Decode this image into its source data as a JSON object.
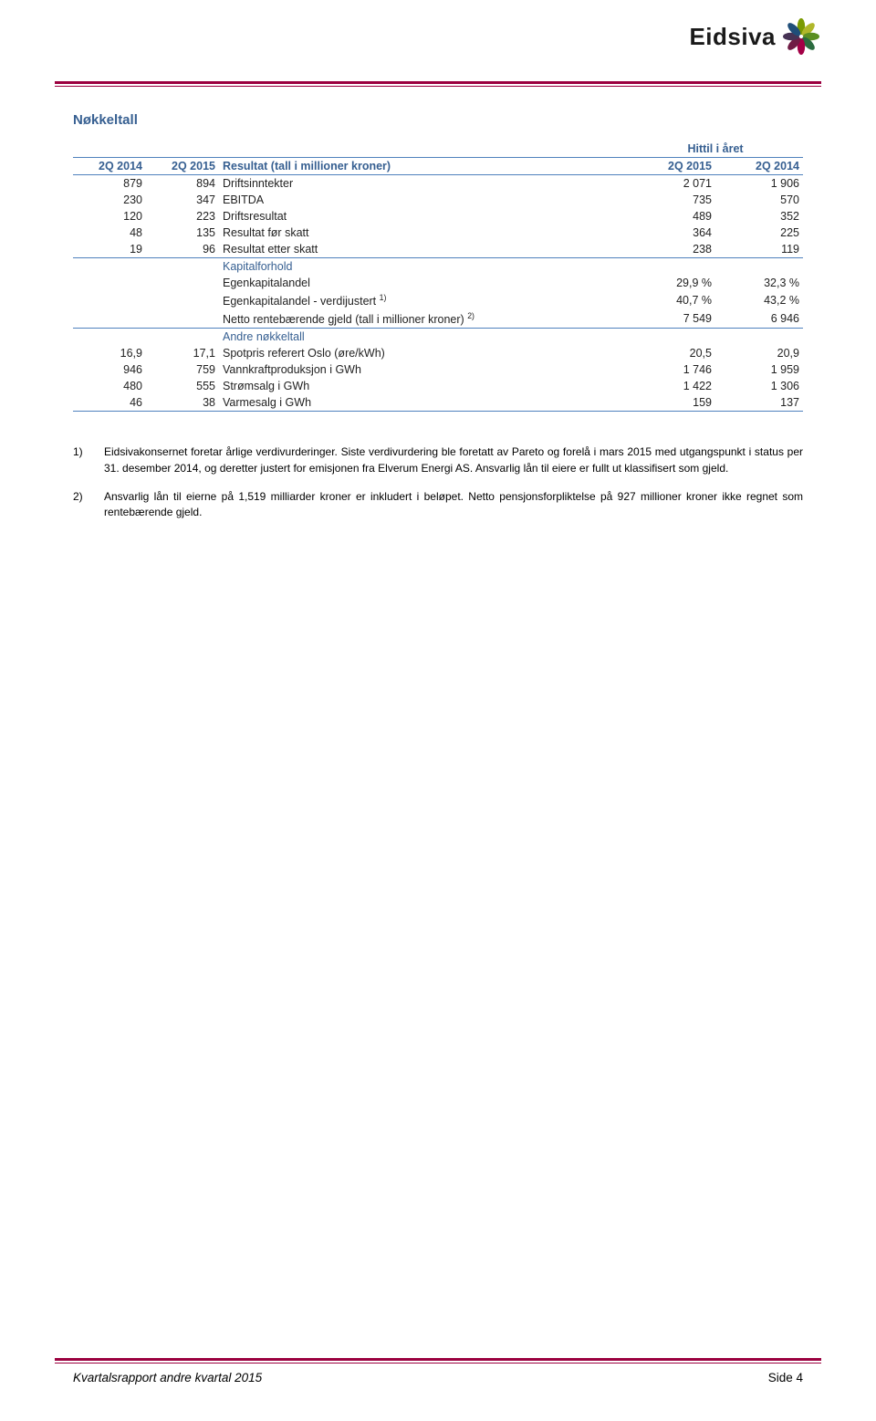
{
  "logo": {
    "text": "Eidsiva"
  },
  "title": "Nøkkeltall",
  "colhead": {
    "ytd": "Hittil i året",
    "q1a": "2Q 2014",
    "q1b": "2Q 2015",
    "metric": "Resultat (tall i millioner kroner)",
    "q2a": "2Q 2015",
    "q2b": "2Q 2014"
  },
  "rows_main": [
    {
      "a": "879",
      "b": "894",
      "lbl": "Driftsinntekter",
      "c": "2 071",
      "d": "1 906"
    },
    {
      "a": "230",
      "b": "347",
      "lbl": "EBITDA",
      "c": "735",
      "d": "570"
    },
    {
      "a": "120",
      "b": "223",
      "lbl": "Driftsresultat",
      "c": "489",
      "d": "352"
    },
    {
      "a": "48",
      "b": "135",
      "lbl": "Resultat før skatt",
      "c": "364",
      "d": "225"
    },
    {
      "a": "19",
      "b": "96",
      "lbl": "Resultat etter skatt",
      "c": "238",
      "d": "119"
    }
  ],
  "sub1_title": "Kapitalforhold",
  "rows_sub1": [
    {
      "a": "",
      "b": "",
      "lbl": "Egenkapitalandel",
      "c": "29,9 %",
      "d": "32,3 %"
    },
    {
      "a": "",
      "b": "",
      "lbl": "Egenkapitalandel - verdijustert",
      "sup": "1)",
      "c": "40,7 %",
      "d": "43,2 %"
    },
    {
      "a": "",
      "b": "",
      "lbl": "Netto rentebærende gjeld (tall i millioner kroner)",
      "sup": "2)",
      "c": "7 549",
      "d": "6 946"
    }
  ],
  "sub2_title": "Andre nøkkeltall",
  "rows_sub2": [
    {
      "a": "16,9",
      "b": "17,1",
      "lbl": "Spotpris referert Oslo (øre/kWh)",
      "c": "20,5",
      "d": "20,9"
    },
    {
      "a": "946",
      "b": "759",
      "lbl": "Vannkraftproduksjon i GWh",
      "c": "1 746",
      "d": "1 959"
    },
    {
      "a": "480",
      "b": "555",
      "lbl": "Strømsalg i GWh",
      "c": "1 422",
      "d": "1 306"
    },
    {
      "a": "46",
      "b": "38",
      "lbl": "Varmesalg i GWh",
      "c": "159",
      "d": "137"
    }
  ],
  "footnotes": [
    {
      "n": "1)",
      "t": "Eidsivakonsernet foretar årlige verdivurderinger. Siste verdivurdering ble foretatt av Pareto og forelå i mars 2015 med utgangspunkt i status per 31. desember 2014, og deretter justert for emisjonen fra Elverum Energi AS. Ansvarlig lån til eiere er fullt ut klassifisert som gjeld."
    },
    {
      "n": "2)",
      "t": "Ansvarlig lån til eierne på 1,519 milliarder kroner er inkludert i beløpet. Netto pensjonsforpliktelse på 927 millioner kroner ikke regnet som rentebærende gjeld."
    }
  ],
  "footer": {
    "left": "Kvartalsrapport andre kvartal 2015",
    "right": "Side 4"
  },
  "colors": {
    "accent": "#9b003f",
    "heading": "#365f91",
    "tableline": "#4f81bd"
  }
}
